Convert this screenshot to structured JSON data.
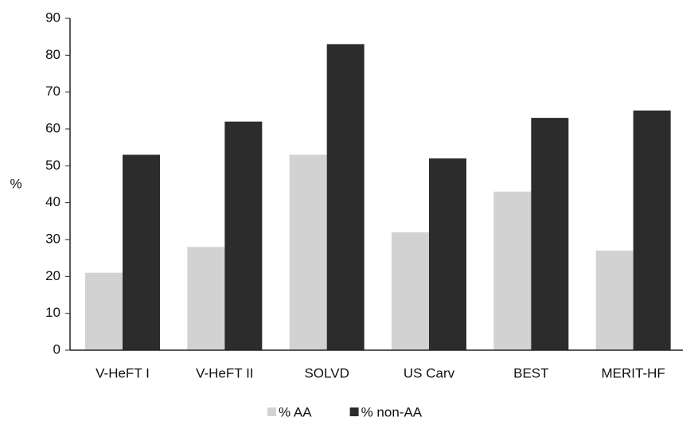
{
  "chart_data": {
    "type": "bar",
    "categories": [
      "V-HeFT I",
      "V-HeFT II",
      "SOLVD",
      "US Carv",
      "BEST",
      "MERIT-HF"
    ],
    "series": [
      {
        "name": "% AA",
        "color": "#d2d2d2",
        "values": [
          21,
          28,
          53,
          32,
          43,
          27
        ]
      },
      {
        "name": "% non-AA",
        "color": "#2c2c2c",
        "values": [
          53,
          62,
          83,
          52,
          63,
          65
        ]
      }
    ],
    "y_label": "%",
    "ylim": [
      0,
      90
    ],
    "yticks": [
      0,
      10,
      20,
      30,
      40,
      50,
      60,
      70,
      80,
      90
    ],
    "grid": false,
    "legend": "bottom"
  }
}
